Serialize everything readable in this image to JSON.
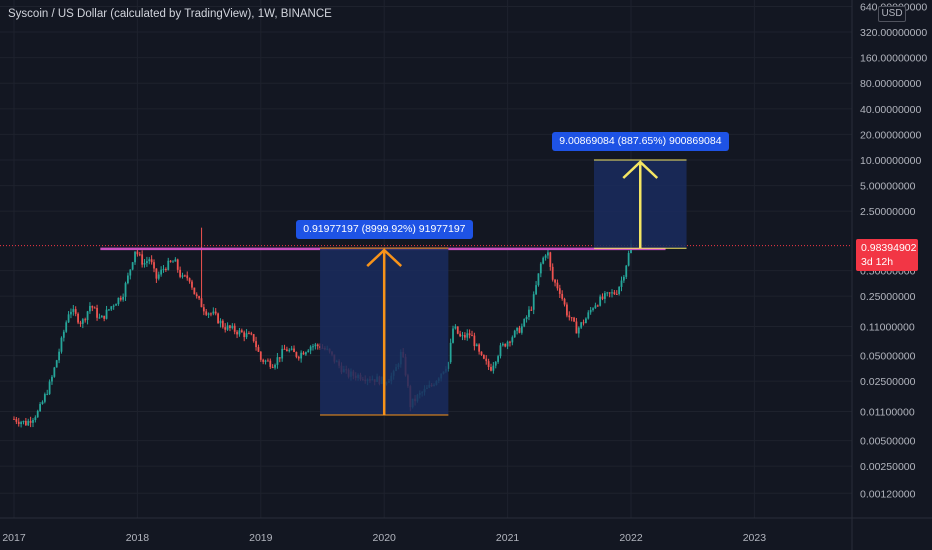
{
  "header": {
    "title": "Syscoin / US Dollar (calculated by TradingView), 1W, BINANCE"
  },
  "currency": {
    "label": "USD"
  },
  "price_axis": {
    "ticks": [
      "640.00000000",
      "320.00000000",
      "160.00000000",
      "80.00000000",
      "40.00000000",
      "20.00000000",
      "10.00000000",
      "5.00000000",
      "2.50000000",
      "0.50000000",
      "0.25000000",
      "0.11000000",
      "0.05000000",
      "0.02500000",
      "0.01100000",
      "0.00500000",
      "0.00250000",
      "0.00120000"
    ]
  },
  "time_axis": {
    "labels": [
      "2017",
      "2018",
      "2019",
      "2020",
      "2021",
      "2022",
      "2023"
    ]
  },
  "last_price": {
    "price": "0.98394902",
    "countdown": "3d 12h"
  },
  "measure_1": {
    "label": "0.91977197 (8999.92%) 91977197"
  },
  "measure_2": {
    "label": "9.00869084 (887.65%) 900869084"
  },
  "colors": {
    "background": "#131722",
    "up": "#26a69a",
    "down": "#ef5350",
    "resistance_line": "#c850c0",
    "arrow_1": "#f7931a",
    "arrow_2": "#f5e663",
    "range_fill": "#1a2b5e",
    "label_bg": "#1e53e5",
    "price_tag": "#f23645"
  },
  "chart_data": {
    "type": "candlestick",
    "title": "Syscoin / US Dollar (calculated by TradingView), 1W, BINANCE",
    "x_unit": "year",
    "scale": "log",
    "ylim": [
      0.001,
      700
    ],
    "xlim": [
      2017.0,
      2023.7
    ],
    "resistance_price": 0.9,
    "close_path": [
      [
        2017.0,
        0.009
      ],
      [
        2017.1,
        0.008
      ],
      [
        2017.2,
        0.011
      ],
      [
        2017.3,
        0.025
      ],
      [
        2017.37,
        0.06
      ],
      [
        2017.45,
        0.18
      ],
      [
        2017.55,
        0.12
      ],
      [
        2017.62,
        0.2
      ],
      [
        2017.7,
        0.13
      ],
      [
        2017.8,
        0.2
      ],
      [
        2017.88,
        0.26
      ],
      [
        2017.93,
        0.45
      ],
      [
        2017.98,
        0.88
      ],
      [
        2018.05,
        0.6
      ],
      [
        2018.1,
        0.7
      ],
      [
        2018.15,
        0.4
      ],
      [
        2018.22,
        0.55
      ],
      [
        2018.3,
        0.65
      ],
      [
        2018.36,
        0.4
      ],
      [
        2018.42,
        0.42
      ],
      [
        2018.47,
        0.25
      ],
      [
        2018.55,
        0.17
      ],
      [
        2018.62,
        0.15
      ],
      [
        2018.7,
        0.11
      ],
      [
        2018.78,
        0.1
      ],
      [
        2018.86,
        0.09
      ],
      [
        2018.94,
        0.08
      ],
      [
        2019.0,
        0.045
      ],
      [
        2019.1,
        0.04
      ],
      [
        2019.2,
        0.06
      ],
      [
        2019.3,
        0.05
      ],
      [
        2019.4,
        0.065
      ],
      [
        2019.48,
        0.065
      ],
      [
        2019.55,
        0.055
      ],
      [
        2019.62,
        0.04
      ],
      [
        2019.7,
        0.03
      ],
      [
        2019.8,
        0.029
      ],
      [
        2019.9,
        0.027
      ],
      [
        2020.0,
        0.025
      ],
      [
        2020.08,
        0.03
      ],
      [
        2020.14,
        0.055
      ],
      [
        2020.18,
        0.028
      ],
      [
        2020.21,
        0.013
      ],
      [
        2020.28,
        0.017
      ],
      [
        2020.38,
        0.022
      ],
      [
        2020.45,
        0.03
      ],
      [
        2020.52,
        0.042
      ],
      [
        2020.56,
        0.11
      ],
      [
        2020.62,
        0.08
      ],
      [
        2020.7,
        0.09
      ],
      [
        2020.78,
        0.048
      ],
      [
        2020.86,
        0.035
      ],
      [
        2020.94,
        0.06
      ],
      [
        2021.02,
        0.08
      ],
      [
        2021.12,
        0.11
      ],
      [
        2021.2,
        0.2
      ],
      [
        2021.27,
        0.6
      ],
      [
        2021.32,
        0.9
      ],
      [
        2021.36,
        0.4
      ],
      [
        2021.42,
        0.3
      ],
      [
        2021.48,
        0.16
      ],
      [
        2021.56,
        0.1
      ],
      [
        2021.64,
        0.14
      ],
      [
        2021.7,
        0.2
      ],
      [
        2021.8,
        0.25
      ],
      [
        2021.88,
        0.28
      ],
      [
        2021.93,
        0.4
      ],
      [
        2022.0,
        1.0
      ]
    ],
    "measurements": [
      {
        "from_year": 2019.48,
        "to_year": 2020.52,
        "from_price": 0.01,
        "to_price": 0.919772,
        "delta": "0.91977197 (8999.92%) 91977197"
      },
      {
        "from_year": 2021.7,
        "to_year": 2022.45,
        "from_price": 0.915,
        "to_price": 10.0,
        "delta": "9.00869084 (887.65%) 900869084"
      }
    ],
    "last_price": 0.98394902
  }
}
